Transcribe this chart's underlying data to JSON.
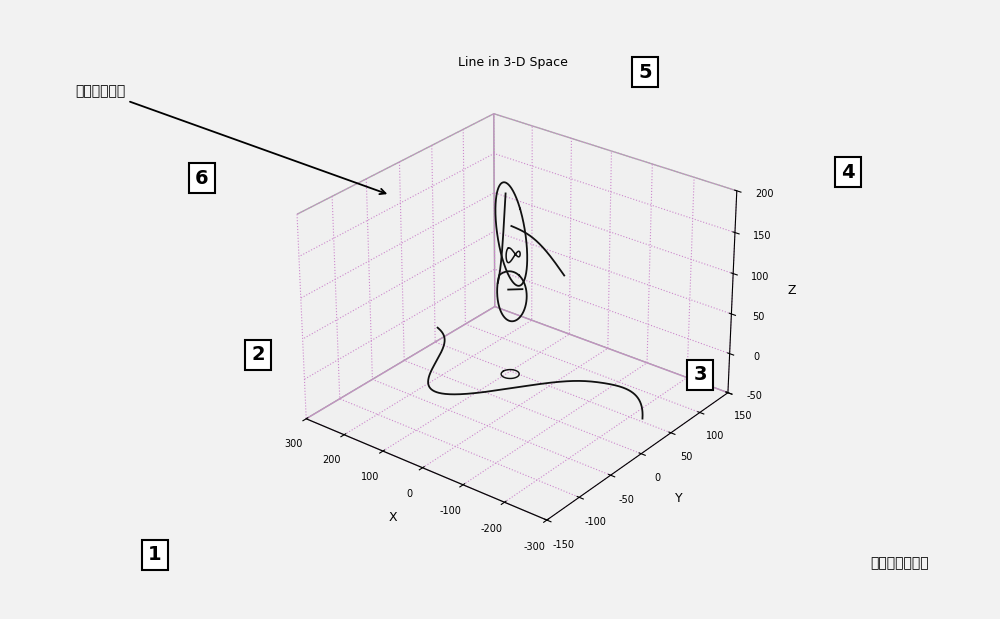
{
  "title": "Line in 3-D Space",
  "xlabel": "X",
  "ylabel": "Y",
  "zlabel": "Z",
  "xlim_display": [
    -300,
    300
  ],
  "ylim_display": [
    -150,
    150
  ],
  "zlim": [
    -50,
    200
  ],
  "label_spindle": "主轴运动曲线",
  "label_table": "工作台运动曲线",
  "bg_color": "#f0f0f0",
  "pane_color": "#e8e8e8",
  "grid_color": "#bb88bb",
  "curve_color": "#111111",
  "elev": 28,
  "azim": -52
}
